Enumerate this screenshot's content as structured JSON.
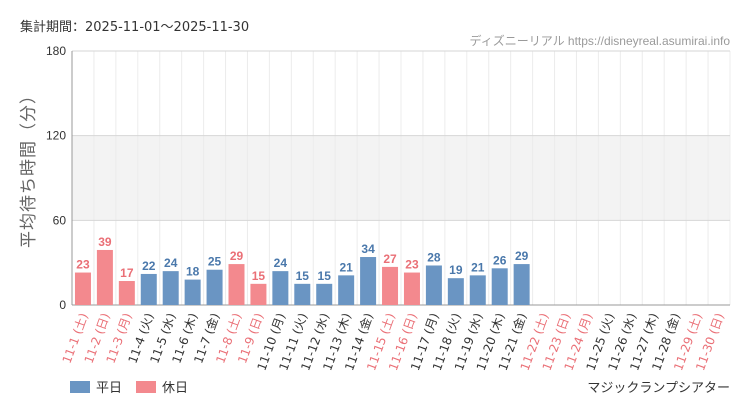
{
  "header": {
    "period_label": "集計期間：2025-11-01～2025-11-30",
    "source_label": "ディズニーリアル https://disneyreal.asumirai.info"
  },
  "footer": {
    "attraction": "マジックランプシアター"
  },
  "colors": {
    "weekday": "#6a95c3",
    "holiday": "#f3898e",
    "weekday_text": "#4a78ab",
    "holiday_text": "#ea6f76"
  },
  "chart_data": {
    "type": "bar",
    "ylabel": "平均待ち時間（分）",
    "ylim": [
      0,
      180
    ],
    "yticks": [
      0,
      60,
      120,
      180
    ],
    "grid": true,
    "legend_position": "bottom-left",
    "legend": [
      {
        "name": "平日",
        "color": "#6a95c3"
      },
      {
        "name": "休日",
        "color": "#f3898e"
      }
    ],
    "categories": [
      "11-1 (土)",
      "11-2 (日)",
      "11-3 (月)",
      "11-4 (火)",
      "11-5 (水)",
      "11-6 (木)",
      "11-7 (金)",
      "11-8 (土)",
      "11-9 (日)",
      "11-10 (月)",
      "11-11 (火)",
      "11-12 (水)",
      "11-13 (木)",
      "11-14 (金)",
      "11-15 (土)",
      "11-16 (日)",
      "11-17 (月)",
      "11-18 (火)",
      "11-19 (水)",
      "11-20 (木)",
      "11-21 (金)",
      "11-22 (土)",
      "11-23 (日)",
      "11-24 (月)",
      "11-25 (火)",
      "11-26 (水)",
      "11-27 (木)",
      "11-28 (金)",
      "11-29 (土)",
      "11-30 (日)"
    ],
    "values": [
      23,
      39,
      17,
      22,
      24,
      18,
      25,
      29,
      15,
      24,
      15,
      15,
      21,
      34,
      27,
      23,
      28,
      19,
      21,
      26,
      29,
      null,
      null,
      null,
      null,
      null,
      null,
      null,
      null,
      null
    ],
    "day_type": [
      "休日",
      "休日",
      "休日",
      "平日",
      "平日",
      "平日",
      "平日",
      "休日",
      "休日",
      "平日",
      "平日",
      "平日",
      "平日",
      "平日",
      "休日",
      "休日",
      "平日",
      "平日",
      "平日",
      "平日",
      "平日",
      "休日",
      "休日",
      "休日",
      "平日",
      "平日",
      "平日",
      "平日",
      "休日",
      "休日"
    ]
  }
}
